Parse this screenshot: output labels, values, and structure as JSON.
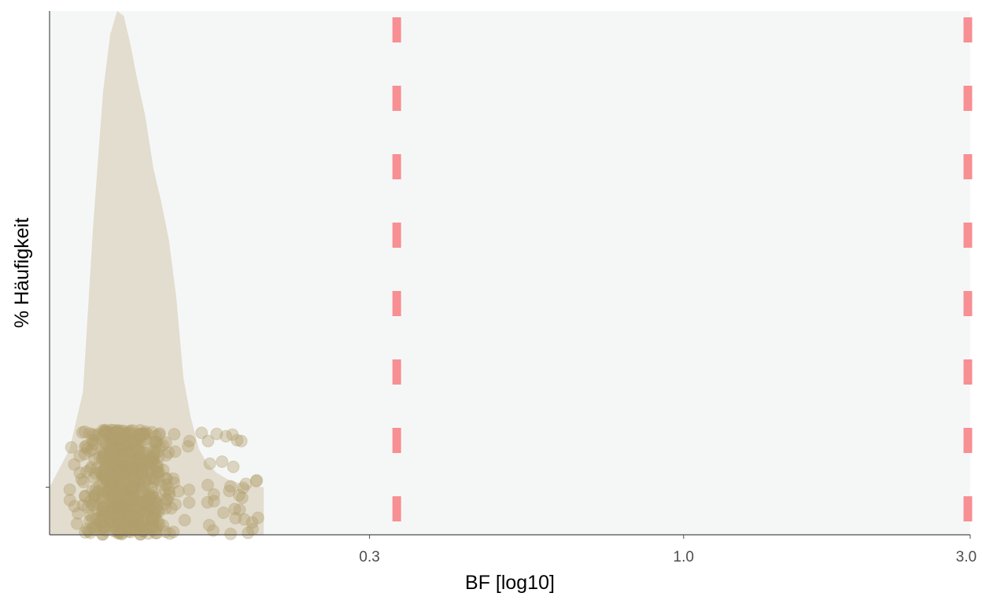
{
  "chart_data": {
    "type": "density",
    "xlabel": "BF [log10]",
    "ylabel": "% Häufigkeit",
    "x_scale": "log10",
    "xlim": [
      0.088,
      3.0
    ],
    "ylim": [
      -0.1,
      1.0
    ],
    "x_ticks": [
      {
        "value": 0.3,
        "label": "0.3"
      },
      {
        "value": 1.0,
        "label": "1.0"
      },
      {
        "value": 3.0,
        "label": "3.0"
      }
    ],
    "y_ticks": [
      {
        "value": 0.0,
        "label": ""
      }
    ],
    "grid": false,
    "density_curve": {
      "x": [
        0.088,
        0.095,
        0.1,
        0.104,
        0.108,
        0.111,
        0.114,
        0.117,
        0.12,
        0.123,
        0.127,
        0.131,
        0.135,
        0.139,
        0.143,
        0.147,
        0.151,
        0.156,
        0.161,
        0.167,
        0.175,
        0.183,
        0.191,
        0.2
      ],
      "y": [
        0.0,
        0.08,
        0.2,
        0.55,
        0.83,
        0.95,
        1.0,
        0.99,
        0.93,
        0.86,
        0.78,
        0.67,
        0.6,
        0.52,
        0.4,
        0.23,
        0.15,
        0.08,
        0.05,
        0.03,
        0.015,
        0.008,
        0.003,
        0.0
      ],
      "color": "#e3ddcf"
    },
    "reference_lines": [
      {
        "x": 0.333,
        "style": "dashed",
        "color": "#f88f93"
      },
      {
        "x": 3.0,
        "style": "dashed",
        "color": "#f88f93"
      }
    ],
    "points": {
      "color": "#b29f6d",
      "opacity": 0.4,
      "n": 700,
      "y_range": [
        -0.1,
        0.12
      ],
      "x_center": 0.118,
      "x_max": 0.197
    },
    "panel_background": "#f5f7f7"
  }
}
